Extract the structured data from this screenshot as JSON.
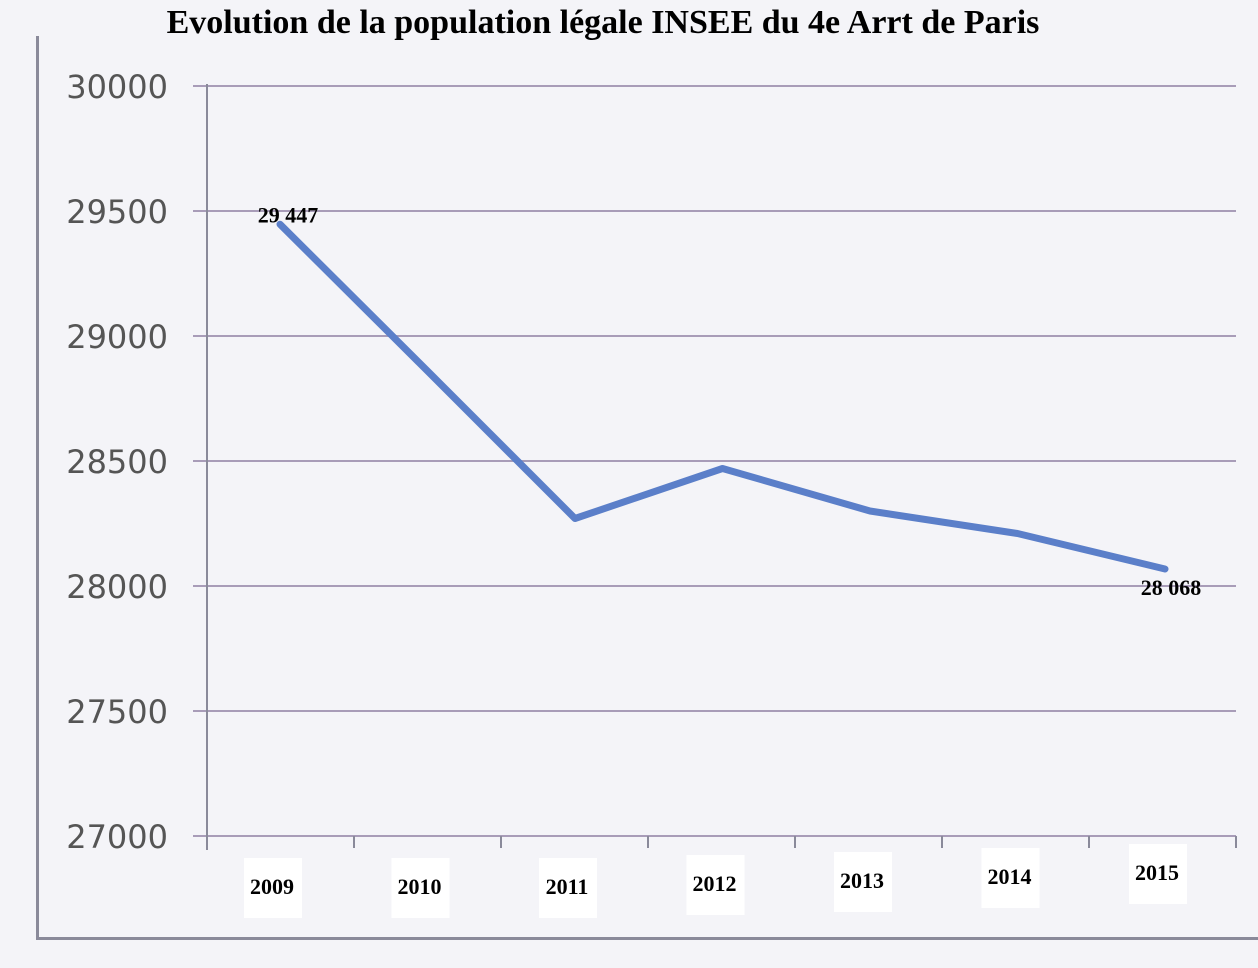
{
  "chart_data": {
    "type": "line",
    "title": "Evolution de la population légale INSEE du 4e Arrt de Paris",
    "xlabel": "",
    "ylabel": "",
    "categories": [
      "2009",
      "2010",
      "2011",
      "2012",
      "2013",
      "2014",
      "2015"
    ],
    "series": [
      {
        "values": [
          29447,
          28860,
          28270,
          28470,
          28300,
          28210,
          28068
        ]
      }
    ],
    "ylim": [
      27000,
      30000
    ],
    "yticks": [
      "27000",
      "27500",
      "28000",
      "28500",
      "29000",
      "29500",
      "30000"
    ],
    "data_labels": [
      {
        "index": 0,
        "text": "29 447"
      },
      {
        "index": 6,
        "text": "28 068"
      }
    ],
    "grid": true,
    "legend": "none",
    "colors": {
      "line": "#5b7fc9",
      "grid": "#a89cb8",
      "axis": "#8a8a9a"
    }
  }
}
